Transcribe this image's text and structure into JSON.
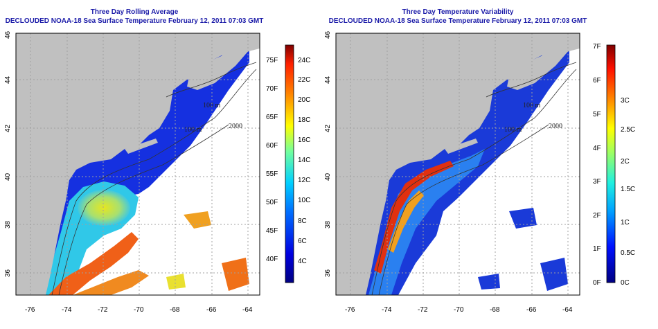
{
  "panels": [
    {
      "title": "Three Day Rolling Average",
      "subtitle": "DECLOUDED NOAA-18 Sea Surface Temperature February 12, 2011 07:03 GMT",
      "x_ticks": [
        "-76",
        "-74",
        "-72",
        "-70",
        "-68",
        "-66",
        "-64"
      ],
      "y_ticks": [
        "36",
        "38",
        "40",
        "42",
        "44",
        "46"
      ],
      "colorbar": {
        "left_labels": [
          "75F",
          "70F",
          "65F",
          "60F",
          "55F",
          "50F",
          "45F",
          "40F"
        ],
        "right_labels": [
          "24C",
          "22C",
          "20C",
          "18C",
          "16C",
          "14C",
          "12C",
          "10C",
          "8C",
          "6C",
          "4C"
        ]
      },
      "contour_labels": [
        "100 m",
        "100 m",
        "2000",
        "200 m",
        "200 m",
        "100 m"
      ]
    },
    {
      "title": "Three Day Temperature Variability",
      "subtitle": "DECLOUDED NOAA-18 Sea Surface Temperature February 12, 2011 07:03 GMT",
      "x_ticks": [
        "-76",
        "-74",
        "-72",
        "-70",
        "-68",
        "-66",
        "-64"
      ],
      "y_ticks": [
        "36",
        "38",
        "40",
        "42",
        "44",
        "46"
      ],
      "colorbar": {
        "left_labels": [
          "7F",
          "6F",
          "5F",
          "4F",
          "3F",
          "2F",
          "1F",
          "0F"
        ],
        "right_labels": [
          "3C",
          "2.5C",
          "2C",
          "1.5C",
          "1C",
          "0.5C",
          "0C"
        ]
      },
      "contour_labels": [
        "100 m",
        "100 m",
        "2000",
        "200 m",
        "200 m",
        "100 m"
      ]
    }
  ],
  "colors": {
    "land": "#c0c0c0",
    "ocean_nodata": "#ffffff",
    "title": "#1a1aa8",
    "grid": "#a0a0a0",
    "cold": "#1a2fd6",
    "warm": "#e8420f"
  }
}
